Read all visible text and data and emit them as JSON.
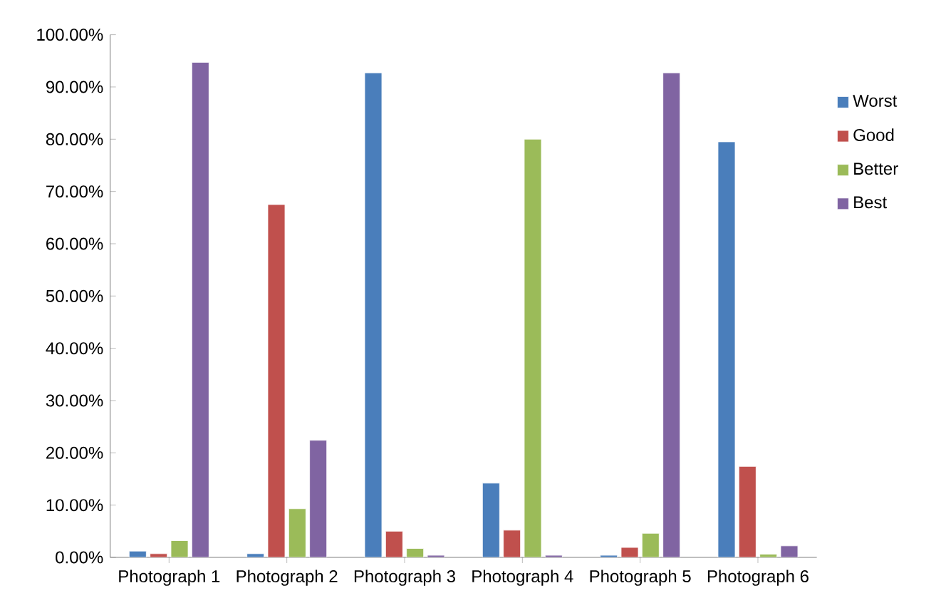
{
  "chart_data": {
    "type": "bar",
    "categories": [
      "Photograph 1",
      "Photograph 2",
      "Photograph 3",
      "Photograph 4",
      "Photograph 5",
      "Photograph 6"
    ],
    "series": [
      {
        "name": "Worst",
        "color": "#4a7ebb",
        "values": [
          1.2,
          0.7,
          92.7,
          14.2,
          0.4,
          79.5
        ]
      },
      {
        "name": "Good",
        "color": "#c0504d",
        "values": [
          0.7,
          67.5,
          5.0,
          5.2,
          1.9,
          17.4
        ]
      },
      {
        "name": "Better",
        "color": "#9bbb59",
        "values": [
          3.2,
          9.3,
          1.7,
          80.0,
          4.6,
          0.6
        ]
      },
      {
        "name": "Best",
        "color": "#8064a2",
        "values": [
          94.7,
          22.4,
          0.4,
          0.4,
          92.7,
          2.2
        ]
      }
    ],
    "ylim": [
      0,
      100
    ],
    "yticks": [
      {
        "value": 0,
        "label": "0.00%"
      },
      {
        "value": 10,
        "label": "10.00%"
      },
      {
        "value": 20,
        "label": "20.00%"
      },
      {
        "value": 30,
        "label": "30.00%"
      },
      {
        "value": 40,
        "label": "40.00%"
      },
      {
        "value": 50,
        "label": "50.00%"
      },
      {
        "value": 60,
        "label": "60.00%"
      },
      {
        "value": 70,
        "label": "70.00%"
      },
      {
        "value": 80,
        "label": "80.00%"
      },
      {
        "value": 90,
        "label": "90.00%"
      },
      {
        "value": 100,
        "label": "100.00%"
      }
    ],
    "legend": "right"
  }
}
